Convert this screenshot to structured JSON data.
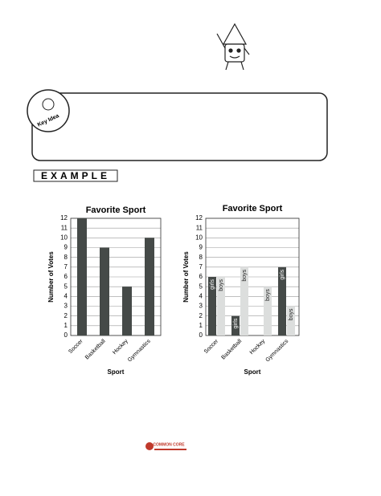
{
  "key_idea_label": "Key Idea",
  "example_label": "EXAMPLE",
  "footer_logo": "COMMON CORE",
  "chart_data": [
    {
      "type": "bar",
      "title": "Favorite Sport",
      "x_label": "Sport",
      "y_label": "Number of Votes",
      "categories": [
        "Soccer",
        "Basketball",
        "Hockey",
        "Gymnastics"
      ],
      "values": [
        12,
        9,
        5,
        10
      ],
      "color": "#454a48",
      "ylim": [
        0,
        12
      ],
      "yticks": [
        0,
        1,
        2,
        3,
        4,
        5,
        6,
        7,
        8,
        9,
        10,
        11,
        12
      ],
      "grid": true
    },
    {
      "type": "grouped_bar",
      "title": "Favorite Sport",
      "x_label": "Sport",
      "y_label": "Number of Votes",
      "categories": [
        "Soccer",
        "Basketball",
        "Hockey",
        "Gymnastics"
      ],
      "series": [
        {
          "name": "girls",
          "color": "#454a48",
          "values": [
            6,
            2,
            0,
            7
          ]
        },
        {
          "name": "boys",
          "color": "#dcdedd",
          "values": [
            6,
            7,
            5,
            3
          ]
        }
      ],
      "ylim": [
        0,
        12
      ],
      "yticks": [
        0,
        1,
        2,
        3,
        4,
        5,
        6,
        7,
        8,
        9,
        10,
        11,
        12
      ],
      "grid": true
    }
  ]
}
